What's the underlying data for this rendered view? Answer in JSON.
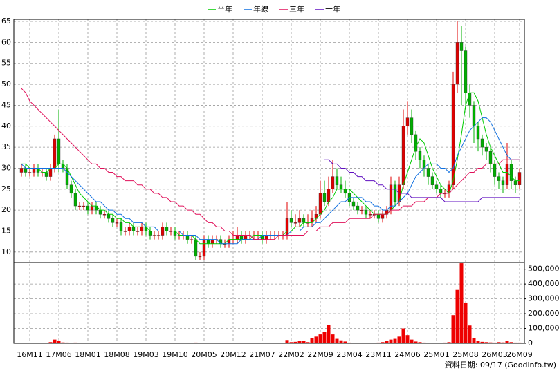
{
  "chart_data": [
    {
      "type": "candlestick",
      "categories": [
        null,
        null,
        "16M11",
        null,
        null,
        null,
        null,
        null,
        null,
        "17M06",
        null,
        null,
        null,
        null,
        null,
        null,
        "18M01",
        null,
        null,
        null,
        null,
        null,
        null,
        "18M08",
        null,
        null,
        null,
        null,
        null,
        null,
        "19M03",
        null,
        null,
        null,
        null,
        null,
        null,
        "19M10",
        null,
        null,
        null,
        null,
        null,
        null,
        "20M05",
        null,
        null,
        null,
        null,
        null,
        null,
        "20M12",
        null,
        null,
        null,
        null,
        null,
        null,
        "21M07",
        null,
        null,
        null,
        null,
        null,
        null,
        "22M02",
        null,
        null,
        null,
        null,
        null,
        null,
        "22M09",
        null,
        null,
        null,
        null,
        null,
        null,
        "23M04",
        null,
        null,
        null,
        null,
        null,
        null,
        "23M11",
        null,
        null,
        null,
        null,
        null,
        null,
        "24M06",
        null,
        null,
        null,
        null,
        null,
        null,
        "25M01",
        null,
        null,
        null,
        null,
        null,
        null,
        "25M08",
        null,
        null,
        null,
        null,
        null,
        null,
        "26M03",
        null,
        null,
        null,
        null,
        null,
        "26M09"
      ],
      "open": [
        29,
        30,
        29,
        29,
        30,
        29,
        29,
        28,
        30,
        37,
        31,
        30,
        26,
        24,
        21,
        21,
        21,
        20,
        21,
        20,
        19,
        19,
        18,
        17,
        17,
        15,
        15,
        16,
        15,
        15,
        16,
        15,
        14,
        14,
        14,
        16,
        15,
        15,
        14,
        14,
        14,
        13,
        13,
        9,
        9,
        13,
        12,
        13,
        13,
        12,
        12,
        13,
        13,
        14,
        13,
        14,
        14,
        14,
        14,
        13,
        14,
        14,
        14,
        14,
        14,
        18,
        17,
        17,
        18,
        17,
        17,
        18,
        19,
        24,
        22,
        25,
        28,
        26,
        25,
        24,
        22,
        21,
        20,
        20,
        19,
        19,
        19,
        18,
        19,
        20,
        26,
        22,
        26,
        40,
        42,
        38,
        34,
        32,
        30,
        28,
        26,
        25,
        24,
        24,
        26,
        50,
        60,
        58,
        48,
        45,
        40,
        37,
        35,
        34,
        31,
        28,
        27,
        26,
        31,
        27,
        26
      ],
      "high": [
        31,
        31,
        30,
        31,
        31,
        30,
        30,
        31,
        38,
        44,
        32,
        31,
        27,
        25,
        22,
        22,
        22,
        22,
        22,
        21,
        20,
        20,
        19,
        18,
        18,
        16,
        17,
        17,
        16,
        17,
        17,
        16,
        15,
        15,
        17,
        17,
        16,
        16,
        15,
        15,
        15,
        14,
        14,
        10,
        14,
        14,
        14,
        14,
        14,
        13,
        14,
        15,
        16,
        15,
        15,
        15,
        15,
        15,
        15,
        15,
        15,
        15,
        15,
        15,
        22,
        20,
        19,
        20,
        19,
        19,
        20,
        21,
        27,
        27,
        28,
        32,
        30,
        28,
        27,
        25,
        23,
        22,
        21,
        21,
        20,
        20,
        20,
        20,
        21,
        28,
        27,
        28,
        44,
        46,
        44,
        39,
        35,
        33,
        31,
        29,
        27,
        26,
        25,
        27,
        53,
        65,
        64,
        59,
        50,
        46,
        41,
        38,
        36,
        35,
        32,
        29,
        28,
        36,
        32,
        28,
        30
      ],
      "low": [
        28,
        28,
        28,
        28,
        28,
        28,
        27,
        27,
        29,
        29,
        29,
        25,
        23,
        20,
        20,
        20,
        19,
        19,
        19,
        18,
        18,
        17,
        16,
        16,
        14,
        14,
        14,
        14,
        14,
        14,
        14,
        13,
        13,
        13,
        13,
        14,
        14,
        13,
        13,
        13,
        12,
        12,
        8,
        8,
        8,
        11,
        11,
        12,
        11,
        11,
        11,
        12,
        12,
        12,
        12,
        13,
        13,
        13,
        12,
        12,
        13,
        13,
        13,
        13,
        13,
        16,
        16,
        16,
        16,
        16,
        16,
        17,
        18,
        21,
        21,
        24,
        25,
        24,
        23,
        21,
        20,
        19,
        19,
        18,
        18,
        18,
        17,
        17,
        18,
        19,
        21,
        21,
        25,
        38,
        36,
        32,
        30,
        28,
        26,
        25,
        24,
        23,
        23,
        23,
        25,
        48,
        45,
        44,
        42,
        36,
        34,
        33,
        32,
        29,
        26,
        25,
        24,
        25,
        25,
        24,
        25
      ],
      "close": [
        30,
        29,
        29,
        30,
        29,
        29,
        28,
        30,
        37,
        31,
        30,
        26,
        24,
        21,
        21,
        21,
        20,
        21,
        20,
        19,
        19,
        18,
        17,
        17,
        15,
        15,
        16,
        15,
        15,
        16,
        15,
        14,
        14,
        14,
        16,
        15,
        15,
        14,
        14,
        14,
        13,
        13,
        9,
        9,
        13,
        12,
        13,
        13,
        12,
        12,
        13,
        13,
        14,
        13,
        14,
        14,
        14,
        14,
        13,
        14,
        14,
        14,
        14,
        14,
        18,
        17,
        17,
        18,
        17,
        17,
        18,
        19,
        24,
        22,
        25,
        28,
        26,
        25,
        24,
        22,
        21,
        20,
        20,
        19,
        19,
        19,
        18,
        19,
        20,
        26,
        22,
        26,
        40,
        42,
        38,
        34,
        32,
        30,
        28,
        26,
        25,
        24,
        24,
        26,
        50,
        60,
        58,
        48,
        45,
        40,
        37,
        35,
        34,
        31,
        28,
        27,
        26,
        31,
        27,
        26,
        29
      ],
      "up_color": "#e00000",
      "down_color": "#00b000",
      "ylim": [
        7.5,
        65.5
      ],
      "yticks": [
        10,
        15,
        20,
        25,
        30,
        35,
        40,
        45,
        50,
        55,
        60,
        65
      ],
      "grid": true,
      "legend": "top",
      "series": [
        {
          "name": "半年",
          "color": "#00cc00",
          "values": [
            31,
            31,
            30,
            30,
            30,
            29,
            29,
            30,
            30,
            31,
            31,
            30,
            28,
            26,
            24,
            23,
            22,
            21,
            21,
            20,
            20,
            19,
            19,
            18,
            18,
            17,
            17,
            16,
            16,
            16,
            16,
            15,
            15,
            15,
            15,
            15,
            15,
            15,
            14,
            14,
            14,
            14,
            13,
            12,
            12,
            12,
            12,
            12,
            12,
            12,
            13,
            13,
            13,
            13,
            13,
            13,
            14,
            14,
            14,
            14,
            14,
            14,
            14,
            14,
            15,
            15,
            16,
            16,
            17,
            17,
            17,
            18,
            19,
            20,
            22,
            23,
            25,
            25,
            25,
            25,
            24,
            23,
            22,
            21,
            20,
            19,
            19,
            19,
            19,
            20,
            21,
            22,
            26,
            29,
            32,
            35,
            37,
            36,
            33,
            30,
            28,
            26,
            25,
            24,
            27,
            32,
            38,
            45,
            48,
            48,
            46,
            42,
            38,
            35,
            33,
            31,
            29,
            29,
            28,
            27,
            27
          ]
        },
        {
          "name": "年線",
          "color": "#1070e0",
          "values": [
            31,
            30,
            30,
            30,
            30,
            30,
            30,
            30,
            30,
            30,
            30,
            29,
            28,
            27,
            26,
            25,
            24,
            23,
            22,
            22,
            21,
            20,
            20,
            19,
            19,
            18,
            18,
            17,
            17,
            17,
            16,
            16,
            16,
            15,
            15,
            15,
            15,
            15,
            15,
            14,
            14,
            14,
            14,
            13,
            13,
            13,
            13,
            13,
            12,
            12,
            12,
            12,
            12,
            13,
            13,
            13,
            13,
            13,
            14,
            14,
            14,
            14,
            14,
            14,
            14,
            15,
            15,
            15,
            16,
            16,
            16,
            17,
            17,
            18,
            19,
            20,
            21,
            22,
            22,
            23,
            23,
            23,
            23,
            22,
            22,
            21,
            21,
            20,
            20,
            21,
            21,
            22,
            23,
            24,
            26,
            28,
            29,
            30,
            31,
            31,
            31,
            30,
            30,
            29,
            30,
            33,
            35,
            37,
            39,
            40,
            41,
            42,
            42,
            41,
            39,
            37,
            35,
            33,
            32,
            32,
            32
          ]
        },
        {
          "name": "三年",
          "color": "#e0105a",
          "values": [
            49,
            48,
            46,
            45,
            44,
            43,
            42,
            41,
            40,
            39,
            38,
            37,
            36,
            35,
            34,
            33,
            32,
            31,
            31,
            30,
            30,
            29,
            29,
            28,
            28,
            27,
            27,
            27,
            26,
            26,
            25,
            25,
            24,
            24,
            23,
            23,
            22,
            22,
            21,
            21,
            20,
            20,
            19,
            19,
            18,
            17,
            17,
            16,
            16,
            15,
            15,
            14,
            14,
            14,
            14,
            14,
            13,
            13,
            13,
            13,
            13,
            13,
            14,
            14,
            14,
            14,
            14,
            14,
            14,
            15,
            15,
            15,
            16,
            16,
            16,
            17,
            17,
            17,
            17,
            18,
            18,
            18,
            18,
            18,
            18,
            19,
            19,
            19,
            19,
            20,
            20,
            20,
            21,
            21,
            21,
            22,
            22,
            22,
            23,
            23,
            23,
            24,
            24,
            24,
            25,
            26,
            27,
            28,
            29,
            29,
            30,
            30,
            31,
            31,
            31,
            31,
            32,
            32,
            32,
            32,
            32
          ]
        },
        {
          "name": "十年",
          "color": "#6010c0",
          "values": [
            null,
            null,
            null,
            null,
            null,
            null,
            null,
            null,
            null,
            null,
            null,
            null,
            null,
            null,
            null,
            null,
            null,
            null,
            null,
            null,
            null,
            null,
            null,
            null,
            null,
            null,
            null,
            null,
            null,
            null,
            null,
            null,
            null,
            null,
            null,
            null,
            null,
            null,
            null,
            null,
            null,
            null,
            null,
            null,
            null,
            null,
            null,
            null,
            null,
            null,
            null,
            null,
            null,
            null,
            null,
            null,
            null,
            null,
            null,
            null,
            null,
            null,
            null,
            null,
            null,
            null,
            null,
            null,
            null,
            null,
            null,
            null,
            null,
            32,
            32,
            31,
            31,
            30,
            30,
            29,
            29,
            28,
            28,
            27,
            27,
            27,
            26,
            26,
            25,
            25,
            25,
            24,
            24,
            24,
            23,
            23,
            23,
            23,
            23,
            23,
            23,
            23,
            22,
            22,
            22,
            22,
            22,
            22,
            22,
            22,
            22,
            23,
            23,
            23,
            23,
            23,
            23,
            23,
            23,
            23,
            23
          ]
        }
      ]
    },
    {
      "type": "bar",
      "values": [
        3000,
        2000,
        4000,
        3000,
        2000,
        2000,
        3000,
        8000,
        25000,
        15000,
        6000,
        5000,
        4000,
        5000,
        3000,
        3000,
        2000,
        2000,
        2000,
        2000,
        2000,
        2000,
        2000,
        2000,
        3000,
        2000,
        2000,
        2000,
        2000,
        2000,
        2000,
        2000,
        2000,
        2000,
        4000,
        2000,
        2000,
        2000,
        2000,
        2000,
        2000,
        2000,
        5000,
        4000,
        4000,
        2000,
        2000,
        2000,
        2000,
        2000,
        2000,
        2000,
        3000,
        2000,
        2000,
        2000,
        2000,
        2000,
        2000,
        2000,
        2000,
        2000,
        2000,
        2000,
        22000,
        8000,
        10000,
        15000,
        18000,
        8000,
        35000,
        45000,
        60000,
        75000,
        125000,
        60000,
        30000,
        20000,
        12000,
        5000,
        4000,
        3000,
        3000,
        2000,
        2000,
        3000,
        5000,
        8000,
        15000,
        25000,
        30000,
        45000,
        100000,
        55000,
        25000,
        12000,
        8000,
        5000,
        4000,
        3000,
        3000,
        2000,
        5000,
        8000,
        190000,
        360000,
        540000,
        275000,
        120000,
        35000,
        15000,
        10000,
        8000,
        6000,
        5000,
        8000,
        6000,
        15000,
        8000,
        5000,
        5000
      ],
      "color": "#ee0000",
      "ylim": [
        0,
        545000
      ],
      "yticks": [
        0,
        {
          "value": 100000,
          "label": "100,000"
        },
        {
          "value": 200000,
          "label": "200,000"
        },
        {
          "value": 300000,
          "label": "300,000"
        },
        {
          "value": 400000,
          "label": "400,000"
        },
        {
          "value": 500000,
          "label": "500,000"
        }
      ],
      "grid": true
    }
  ],
  "source_note": "資料日期: 09/17  (Goodinfo.tw)"
}
